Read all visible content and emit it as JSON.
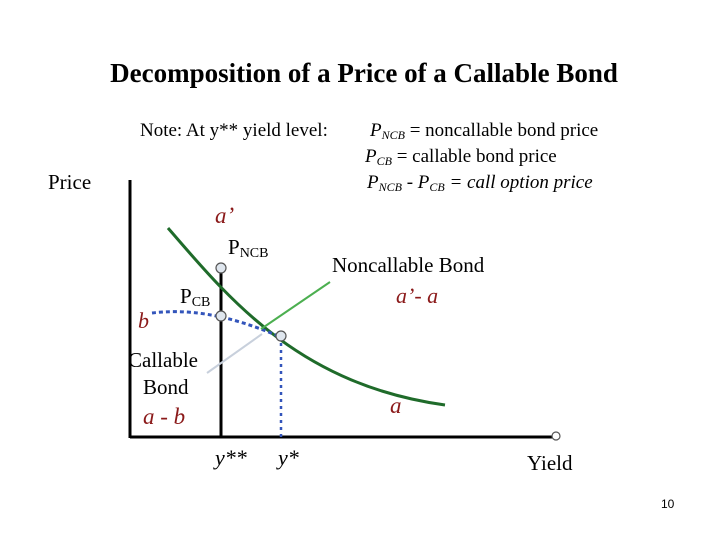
{
  "title": "Decomposition of a Price of a Callable Bond",
  "note": {
    "label": "Note: At y** yield level:",
    "line1": {
      "p": "P",
      "sub": "NCB",
      "rest": " = noncallable bond price"
    },
    "line2": {
      "p": "P",
      "sub": "CB",
      "rest": " = callable bond price"
    },
    "line3": {
      "p1": "P",
      "sub1": "NCB",
      "minus": " - ",
      "p2": "P",
      "sub2": "CB",
      "rest": " = call option price"
    }
  },
  "axes": {
    "y_label": "Price",
    "x_label": "Yield"
  },
  "labels": {
    "a_prime": "a’",
    "pncb": {
      "p": "P",
      "sub": "NCB"
    },
    "pcb": {
      "p": "P",
      "sub": "CB"
    },
    "b": "b",
    "noncallable_name": "Noncallable Bond",
    "noncallable_diff": "a’- a",
    "callable_line1": "Callable",
    "callable_line2": "Bond",
    "callable_diff": "a - b",
    "a": "a",
    "y_double_star": "y**",
    "y_star": "y*"
  },
  "colors": {
    "noncallable_curve": "#1f6b2a",
    "callable_curve": "#3355bb",
    "red_label": "#8b1a1a",
    "pointer_green": "#4caf50",
    "pointer_light": "#c8d0dc"
  },
  "slide_number": "10"
}
